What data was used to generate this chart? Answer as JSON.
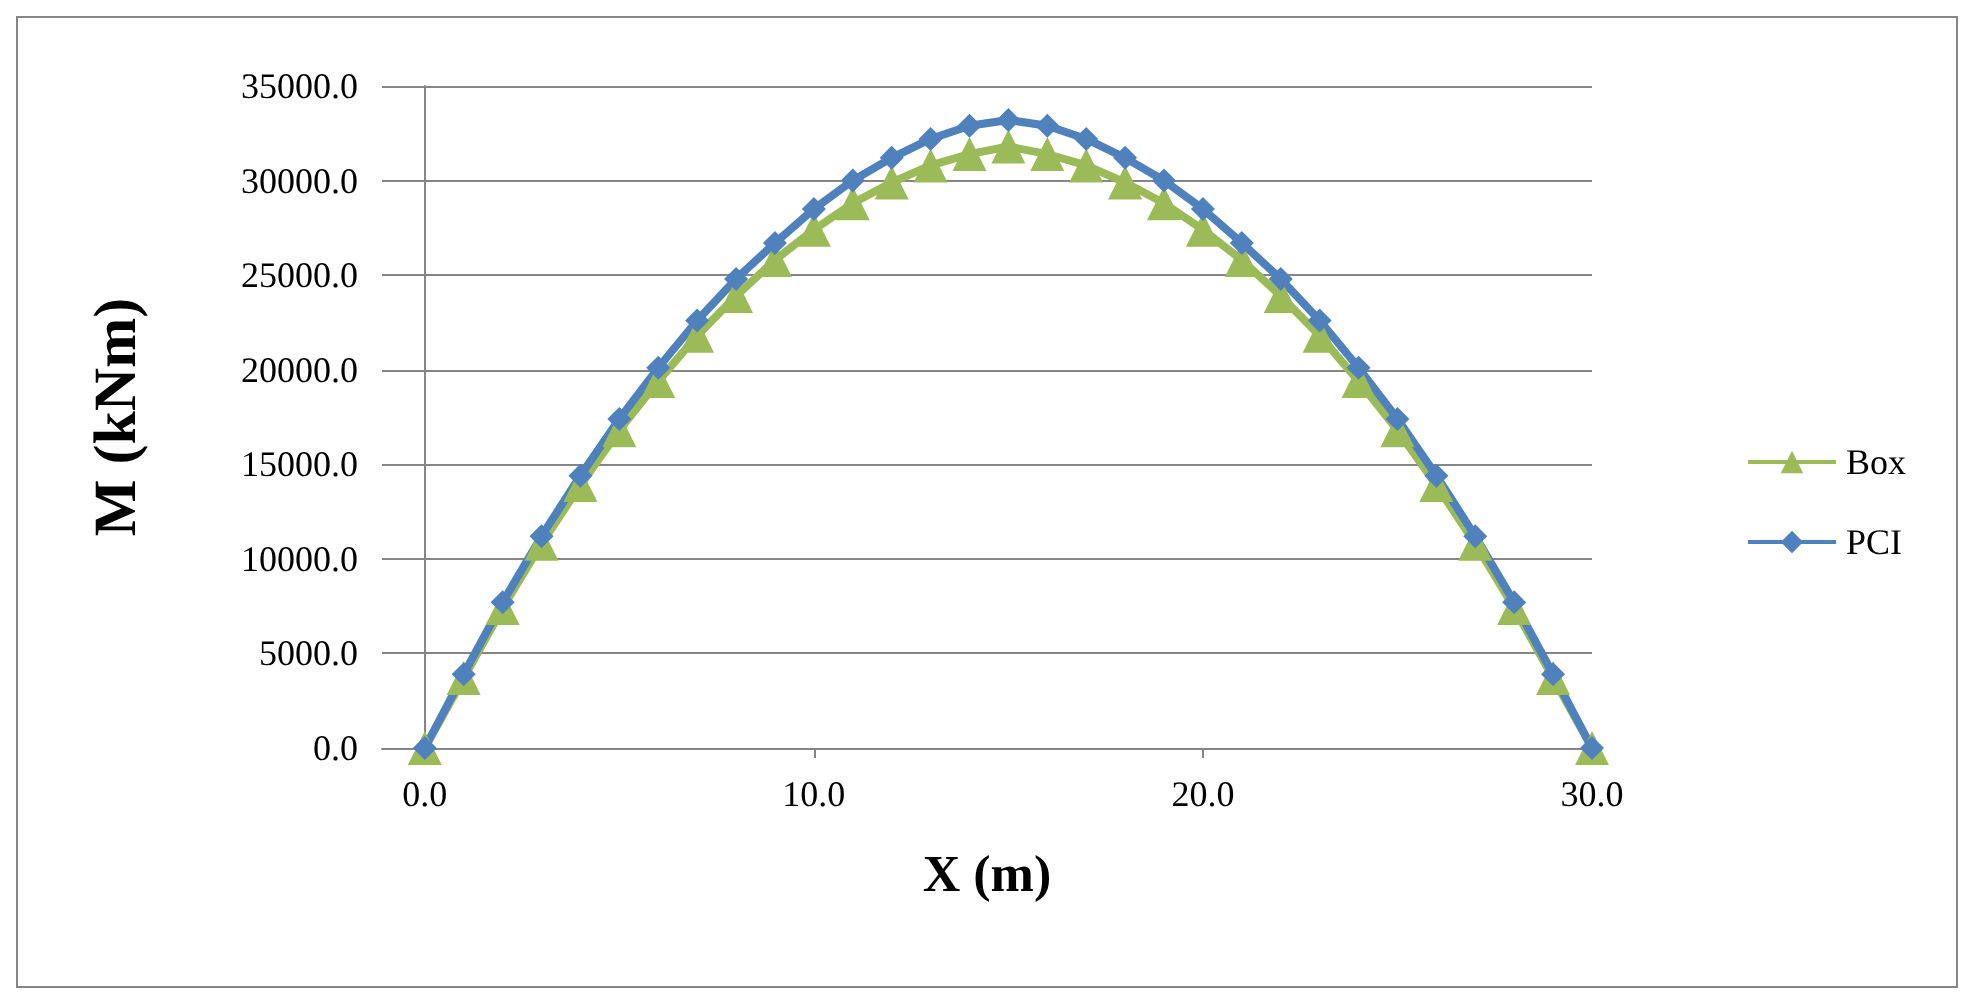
{
  "chart_data": {
    "type": "line",
    "xlabel": "X (m)",
    "ylabel": "M (kNm)",
    "x": [
      0,
      1,
      2,
      3,
      4,
      5,
      6,
      7,
      8,
      9,
      10,
      11,
      12,
      13,
      14,
      15,
      16,
      17,
      18,
      19,
      20,
      21,
      22,
      23,
      24,
      25,
      26,
      27,
      28,
      29,
      30
    ],
    "series": [
      {
        "name": "Box",
        "color": "#9bbb59",
        "marker": "triangle",
        "values": [
          0,
          3700,
          7400,
          10800,
          13900,
          16800,
          19400,
          21800,
          23900,
          25800,
          27400,
          28800,
          29900,
          30800,
          31400,
          31800,
          31400,
          30800,
          29900,
          28800,
          27400,
          25800,
          23900,
          21800,
          19400,
          16800,
          13900,
          10800,
          7400,
          3700,
          0
        ]
      },
      {
        "name": "PCI",
        "color": "#4f81bd",
        "marker": "diamond",
        "values": [
          0,
          3900,
          7700,
          11200,
          14400,
          17400,
          20100,
          22600,
          24800,
          26700,
          28500,
          30000,
          31200,
          32200,
          32900,
          33200,
          32900,
          32200,
          31200,
          30000,
          28500,
          26700,
          24800,
          22600,
          20100,
          17400,
          14400,
          11200,
          7700,
          3900,
          0
        ]
      }
    ],
    "xlim": [
      -1.1,
      30
    ],
    "xticks": [
      {
        "value": 0,
        "label": "0.0"
      },
      {
        "value": 10,
        "label": "10.0"
      },
      {
        "value": 20,
        "label": "20.0"
      },
      {
        "value": 30,
        "label": "30.0"
      }
    ],
    "ylim": [
      0,
      35000
    ],
    "yticks": [
      {
        "value": 0,
        "label": "0.0"
      },
      {
        "value": 5000,
        "label": "5000.0"
      },
      {
        "value": 10000,
        "label": "10000.0"
      },
      {
        "value": 15000,
        "label": "15000.0"
      },
      {
        "value": 20000,
        "label": "20000.0"
      },
      {
        "value": 25000,
        "label": "25000.0"
      },
      {
        "value": 30000,
        "label": "30000.0"
      },
      {
        "value": 35000,
        "label": "35000.0"
      }
    ],
    "grid": "y",
    "legend": "right",
    "line_style": "solid"
  }
}
